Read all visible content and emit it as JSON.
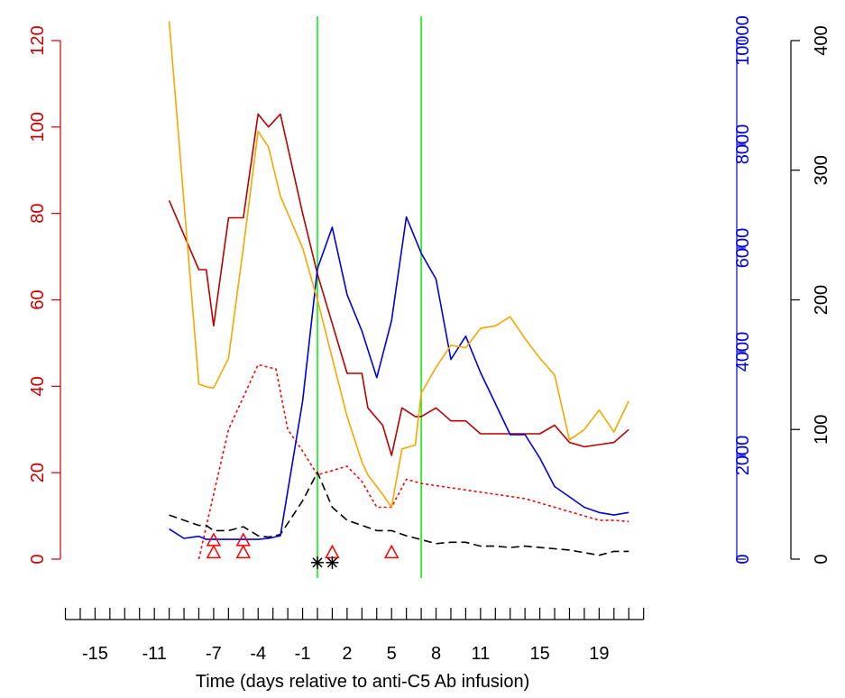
{
  "chart_data": {
    "type": "line",
    "xlabel": "Time (days relative to anti-C5 Ab infusion)",
    "x_tick_labels": [
      "-15",
      "-11",
      "-7",
      "-4",
      "-1",
      "2",
      "5",
      "8",
      "11",
      "15",
      "19"
    ],
    "x_tick_values": [
      -15,
      -11,
      -7,
      -4,
      -1,
      2,
      5,
      8,
      11,
      15,
      19
    ],
    "x_minor_ticks": [
      -17,
      -16,
      -15,
      -14,
      -13,
      -12,
      -11,
      -10,
      -9,
      -8,
      -7,
      -6,
      -5,
      -4,
      -3,
      -2,
      -1,
      0,
      1,
      2,
      3,
      4,
      5,
      6,
      7,
      8,
      9,
      10,
      11,
      12,
      13,
      14,
      15,
      16,
      17,
      18,
      19,
      20,
      21,
      22
    ],
    "xlim": [
      -17,
      22
    ],
    "axes": {
      "left": {
        "range": [
          0,
          120
        ],
        "ticks": [
          "0",
          "20",
          "40",
          "60",
          "80",
          "100",
          "120"
        ],
        "tick_values": [
          0,
          20,
          40,
          60,
          80,
          100,
          120
        ],
        "color": "#cc0000"
      },
      "right_blue": {
        "range": [
          0,
          10000
        ],
        "ticks": [
          "0",
          "2000",
          "4000",
          "6000",
          "8000",
          "10000"
        ],
        "tick_values": [
          0,
          2000,
          4000,
          6000,
          8000,
          10000
        ],
        "color": "#0000dd"
      },
      "right_black": {
        "range": [
          0,
          400
        ],
        "ticks": [
          "0",
          "100",
          "200",
          "300",
          "400"
        ],
        "tick_values": [
          0,
          100,
          200,
          300,
          400
        ],
        "color": "#000000"
      }
    },
    "vertical_lines": {
      "x": [
        0,
        7
      ],
      "color": "#00ee00"
    },
    "series": [
      {
        "axis": "left",
        "color": "#bb0000",
        "style": "solid",
        "x": [
          -10,
          -8,
          -7.5,
          -7,
          -6,
          -5,
          -4,
          -3.3,
          -2.5,
          -1,
          0,
          2,
          3,
          3.4,
          4.4,
          5,
          5.7,
          6.6,
          7,
          8,
          9,
          10,
          11,
          13,
          14,
          15,
          16,
          17,
          18,
          19,
          20,
          21
        ],
        "y": [
          83,
          67,
          67,
          54,
          79,
          79,
          103,
          100,
          103,
          80,
          66,
          43,
          43,
          35,
          31,
          24,
          35,
          33,
          33,
          35,
          32,
          32,
          29,
          29,
          29,
          29,
          31,
          27,
          26,
          26.5,
          27,
          30
        ]
      },
      {
        "axis": "left",
        "color": "#ff0000",
        "style": "dotted",
        "x": [
          -8,
          -7,
          -6,
          -4,
          -2.8,
          -2,
          -1,
          0,
          1,
          2,
          3,
          4,
          5,
          6,
          7,
          8,
          9,
          10,
          11,
          12,
          13,
          14,
          15,
          16,
          17,
          18,
          19,
          20,
          21
        ],
        "y": [
          0,
          15,
          30,
          45,
          44,
          30,
          25,
          19.5,
          20.5,
          21.5,
          18,
          12,
          12,
          18.5,
          17.5,
          17,
          16.5,
          16,
          15.5,
          15,
          14.5,
          14,
          13,
          12,
          11,
          10,
          9,
          9,
          8.7
        ]
      },
      {
        "axis": "right_black",
        "color": "#000000",
        "style": "dashed",
        "x": [
          -10,
          -9,
          -8,
          -7.5,
          -7,
          -6,
          -5,
          -4,
          -3.3,
          -2.5,
          -1,
          0,
          1,
          2,
          3,
          4,
          5,
          6,
          7,
          8,
          9,
          10,
          11,
          12,
          13,
          14,
          15,
          16,
          17,
          18,
          19,
          20,
          21
        ],
        "y": [
          34,
          30,
          26,
          26,
          22,
          22,
          25,
          18,
          17,
          19,
          45,
          67,
          40,
          30,
          26,
          22,
          22,
          18,
          15,
          12,
          13,
          13,
          10,
          10,
          9,
          10,
          9,
          8,
          7,
          5,
          3,
          6,
          6
        ]
      },
      {
        "axis": "right_blue",
        "color": "#0000dd",
        "style": "solid",
        "x": [
          -10,
          -9,
          -8,
          -7.5,
          -7,
          -6,
          -5,
          -4,
          -3.3,
          -2.5,
          -1,
          0,
          1,
          2,
          3,
          4,
          5,
          6,
          7,
          8,
          9,
          10,
          11,
          12,
          13,
          14,
          15,
          16,
          17,
          18,
          19,
          20,
          21
        ],
        "y": [
          580,
          400,
          440,
          380,
          380,
          380,
          380,
          380,
          400,
          450,
          3050,
          5600,
          6400,
          5100,
          4400,
          3500,
          4600,
          6600,
          5900,
          5400,
          3850,
          4300,
          3600,
          3000,
          2400,
          2400,
          1950,
          1400,
          1200,
          1000,
          900,
          850,
          900
        ]
      },
      {
        "axis": "right_black",
        "color": "#f5a800",
        "style": "solid",
        "x": [
          -10,
          -8,
          -7.5,
          -7,
          -6,
          -5,
          -4,
          -3.3,
          -2.5,
          -1,
          0,
          2,
          3,
          3.4,
          4.4,
          5,
          5.7,
          6.6,
          7,
          8,
          9,
          10,
          11,
          12,
          13,
          14,
          15,
          16,
          17,
          18,
          19,
          20,
          21
        ],
        "y": [
          415,
          135,
          133,
          132,
          155,
          240,
          330,
          318,
          280,
          240,
          200,
          110,
          75,
          65,
          50,
          40,
          85,
          88,
          128,
          148,
          165,
          163,
          178,
          180,
          187,
          170,
          155,
          142,
          92,
          100,
          115,
          98,
          122
        ]
      }
    ],
    "markers": [
      {
        "shape": "triangle",
        "color": "#ff0000",
        "x": -7,
        "y": 1.6,
        "axis": "left"
      },
      {
        "shape": "triangle",
        "color": "#ff0000",
        "x": -7,
        "y": 4.4,
        "axis": "left"
      },
      {
        "shape": "triangle",
        "color": "#ff0000",
        "x": -5,
        "y": 1.6,
        "axis": "left"
      },
      {
        "shape": "triangle",
        "color": "#ff0000",
        "x": -5,
        "y": 4.4,
        "axis": "left"
      },
      {
        "shape": "triangle",
        "color": "#ff0000",
        "x": 1,
        "y": 1.6,
        "axis": "left"
      },
      {
        "shape": "triangle",
        "color": "#ff0000",
        "x": 5,
        "y": 1.6,
        "axis": "left"
      },
      {
        "shape": "asterisk",
        "color": "#000000",
        "x": 0,
        "y": -0.8,
        "axis": "left"
      },
      {
        "shape": "asterisk",
        "color": "#000000",
        "x": 1,
        "y": -0.8,
        "axis": "left"
      }
    ]
  }
}
